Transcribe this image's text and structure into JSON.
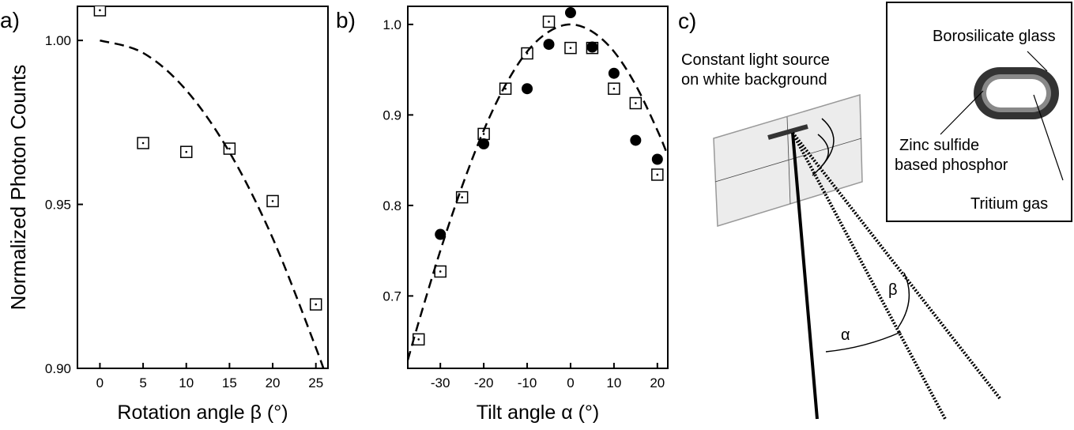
{
  "chart_data": [
    {
      "type": "scatter",
      "label": "a)",
      "ylabel": "Normalized Photon Counts",
      "xlabel": "Rotation angle β (°)",
      "xlim": [
        -2.6,
        26.4
      ],
      "xticks": [
        0,
        5,
        10,
        15,
        20,
        25
      ],
      "ylim": [
        0.9,
        1.0104
      ],
      "yticks": [
        {
          "value": 1.0,
          "label": "1.00"
        },
        0.95,
        {
          "value": 0.9,
          "label": "0.90"
        }
      ],
      "series": [
        {
          "marker": "square",
          "color": "#000000",
          "x": [
            0,
            5,
            10,
            15,
            20,
            25
          ],
          "values": [
            1.0092,
            0.9687,
            0.966,
            0.967,
            0.951,
            0.9195
          ]
        },
        {
          "line": "dashed",
          "color": "#000000",
          "x": [
            0,
            5,
            10,
            15,
            20,
            25,
            26.4
          ],
          "values": [
            1.0,
            0.9962,
            0.9848,
            0.9659,
            0.9397,
            0.9063,
            0.8957
          ]
        }
      ]
    },
    {
      "type": "scatter",
      "label": "b)",
      "xlabel": "Tilt angle α (°)",
      "xlim": [
        -37.5,
        22.4
      ],
      "xticks": [
        -30,
        -20,
        -10,
        0,
        10,
        20
      ],
      "ylim": [
        0.62,
        1.02
      ],
      "yticks": [
        {
          "value": 1.0,
          "label": "1.0"
        },
        0.9,
        0.8,
        0.7
      ],
      "series": [
        {
          "marker": "square",
          "color": "#000000",
          "x": [
            -35,
            -30,
            -25,
            -20,
            -15,
            -10,
            -5,
            0,
            5,
            10,
            15,
            20
          ],
          "values": [
            0.652,
            0.727,
            0.809,
            0.879,
            0.929,
            0.968,
            1.003,
            0.974,
            0.974,
            0.929,
            0.913,
            0.834
          ]
        },
        {
          "marker": "circle",
          "color": "#000000",
          "x": [
            -30,
            -20,
            -10,
            -5,
            0,
            5,
            10,
            15,
            20
          ],
          "values": [
            0.768,
            0.868,
            0.929,
            0.978,
            1.013,
            0.975,
            0.946,
            0.872,
            0.851
          ]
        },
        {
          "line": "dashed",
          "color": "#000000",
          "x": [
            -37.5,
            -35,
            -30,
            -25,
            -20,
            -15,
            -10,
            -5,
            0,
            5,
            10,
            15,
            20,
            22.4
          ],
          "values": [
            0.629,
            0.671,
            0.75,
            0.821,
            0.883,
            0.933,
            0.97,
            0.992,
            1.0,
            0.992,
            0.97,
            0.933,
            0.883,
            0.855
          ]
        }
      ]
    }
  ],
  "diagram": {
    "label": "c)",
    "source": [
      "Constant light source",
      "on white background"
    ],
    "inset": {
      "glass": "Borosilicate glass",
      "phosphor": [
        "Zinc sulfide",
        "based phosphor"
      ],
      "gas": "Tritium gas"
    },
    "alpha": "α",
    "beta": "β"
  }
}
